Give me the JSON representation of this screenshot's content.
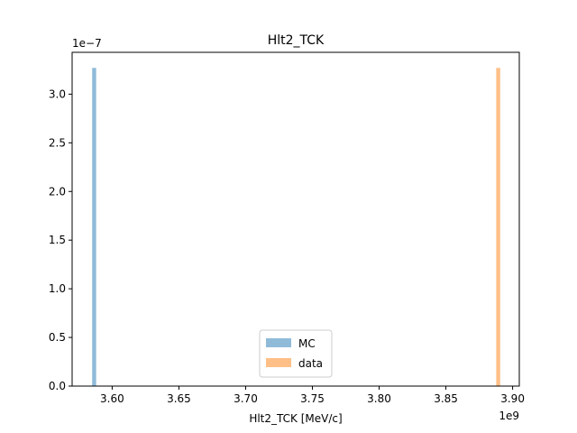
{
  "chart_data": {
    "type": "bar",
    "title": "Hlt2_TCK",
    "xlabel": "Hlt2_TCK [MeV/c]",
    "ylabel": "",
    "x_offset_label": "1e9",
    "y_offset_label": "1e−7",
    "xlim": [
      3.57,
      3.905
    ],
    "ylim": [
      0.0,
      3.43
    ],
    "x_ticks": [
      3.6,
      3.65,
      3.7,
      3.75,
      3.8,
      3.85,
      3.9
    ],
    "x_tick_labels": [
      "3.60",
      "3.65",
      "3.70",
      "3.75",
      "3.80",
      "3.85",
      "3.90"
    ],
    "y_ticks": [
      0.0,
      0.5,
      1.0,
      1.5,
      2.0,
      2.5,
      3.0
    ],
    "y_tick_labels": [
      "0.0",
      "0.5",
      "1.0",
      "1.5",
      "2.0",
      "2.5",
      "3.0"
    ],
    "grid": false,
    "legend_position": "lower-center",
    "series": [
      {
        "name": "MC",
        "color": "#1f77b4",
        "alpha": 0.5,
        "bins": [
          {
            "x0": 3.585,
            "x1": 3.588,
            "value": 3.27
          }
        ]
      },
      {
        "name": "data",
        "color": "#ff7f0e",
        "alpha": 0.5,
        "bins": [
          {
            "x0": 3.8877,
            "x1": 3.8907,
            "value": 3.27
          }
        ]
      }
    ]
  }
}
